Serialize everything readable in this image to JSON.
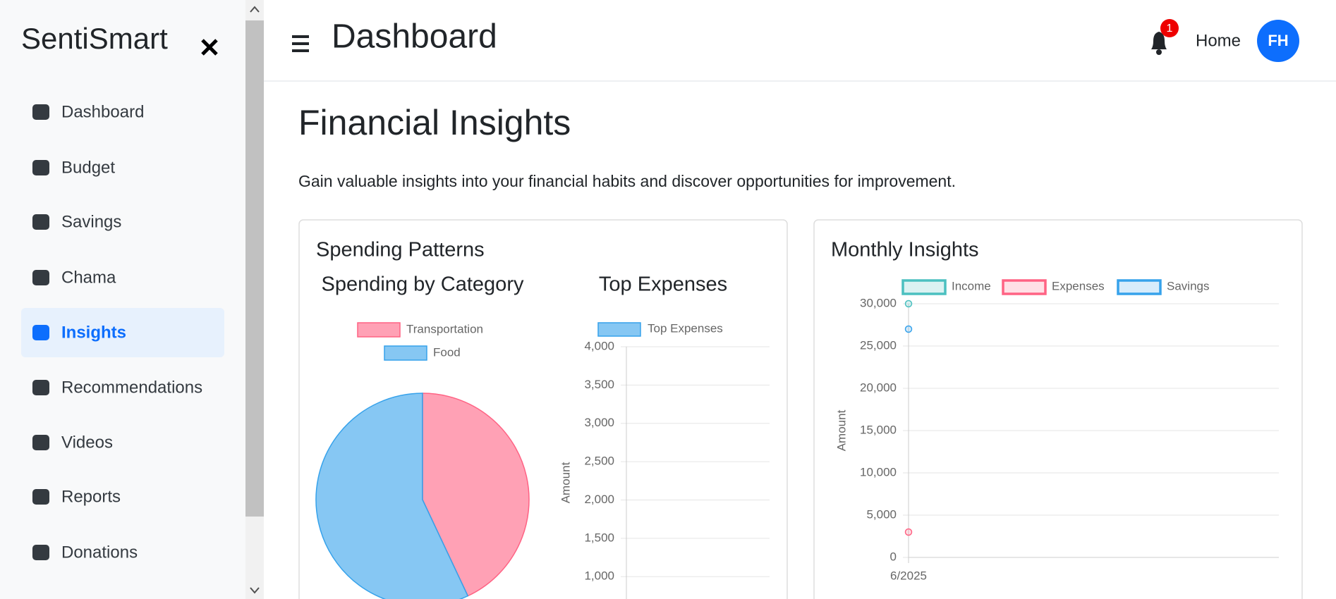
{
  "sidebar": {
    "brand": "SentiSmart",
    "nav": [
      "Dashboard",
      "Budget",
      "Savings",
      "Chama",
      "Insights",
      "Recommendations",
      "Videos",
      "Reports",
      "Donations"
    ],
    "active_index": 4
  },
  "header": {
    "title": "Dashboard",
    "notification_count": 1,
    "link": "Home",
    "avatar": "FH"
  },
  "page": {
    "title": "Financial Insights",
    "description": "Gain valuable insights into your financial habits and discover opportunities for improvement."
  },
  "cards": [
    {
      "title": "Spending Patterns"
    },
    {
      "title": "Monthly Insights"
    }
  ],
  "chart_data": [
    {
      "type": "pie",
      "title": "Spending by Category",
      "categories": [
        "Transportation",
        "Food"
      ],
      "values": [
        43,
        57
      ],
      "colors": [
        "#ff6384",
        "#36a2eb"
      ]
    },
    {
      "type": "bar",
      "title": "Top Expenses",
      "y_label": "Amount",
      "categories": [],
      "series": [
        {
          "name": "Top Expenses",
          "color": "#36a2eb",
          "values": []
        }
      ],
      "ylim": [
        0,
        4000
      ],
      "yticks": [
        500,
        {
          "value": 1000,
          "label": "1,000"
        },
        {
          "value": 1500,
          "label": "1,500"
        },
        {
          "value": 2000,
          "label": "2,000"
        },
        {
          "value": 2500,
          "label": "2,500"
        },
        {
          "value": 3000,
          "label": "3,000"
        },
        {
          "value": 3500,
          "label": "3,500"
        },
        {
          "value": 4000,
          "label": "4,000"
        }
      ],
      "grid": true
    },
    {
      "type": "line",
      "y_label": "Amount",
      "x": [
        "6/2025"
      ],
      "series": [
        {
          "name": "Income",
          "color": "#4bc0c0",
          "values": [
            30000
          ]
        },
        {
          "name": "Expenses",
          "color": "#ff6384",
          "values": [
            3000
          ]
        },
        {
          "name": "Savings",
          "color": "#36a2eb",
          "values": [
            27000
          ]
        }
      ],
      "ylim": [
        0,
        30000
      ],
      "yticks": [
        0,
        {
          "value": 5000,
          "label": "5,000"
        },
        {
          "value": 10000,
          "label": "10,000"
        },
        {
          "value": 15000,
          "label": "15,000"
        },
        {
          "value": 20000,
          "label": "20,000"
        },
        {
          "value": 25000,
          "label": "25,000"
        },
        {
          "value": 30000,
          "label": "30,000"
        }
      ],
      "grid": true
    }
  ]
}
